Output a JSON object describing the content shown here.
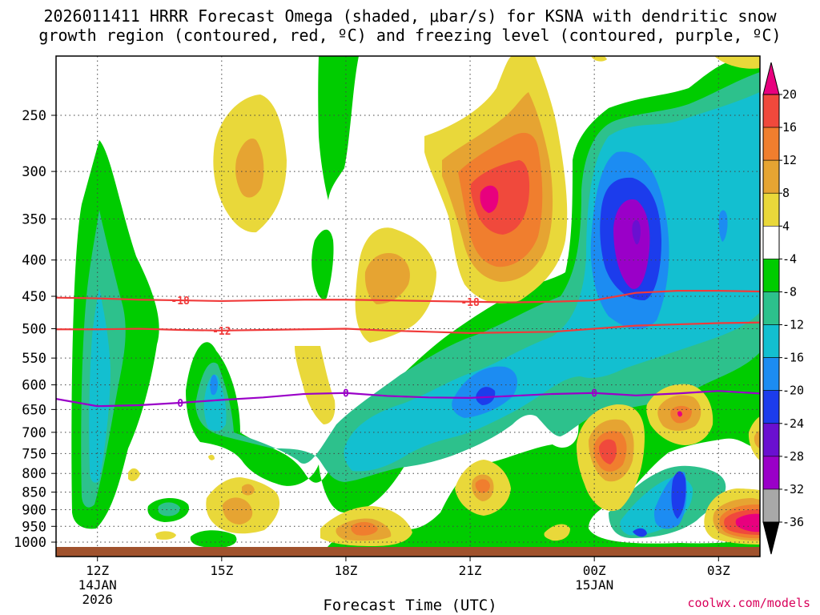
{
  "title_line1": "2026011411 HRRR Forecast Omega (shaded, μbar/s) for KSNA with dendritic snow",
  "title_line2": "growth region (contoured, red, ºC) and freezing level (contoured, purple, ºC)",
  "credit": "coolwx.com/models",
  "chart_data": {
    "type": "contour",
    "title": "2026011411 HRRR Forecast Omega (shaded, μbar/s) for KSNA with dendritic snow growth region (contoured, red, ºC) and freezing level (contoured, purple, ºC)",
    "xlabel": "Forecast Time (UTC)",
    "ylabel": "",
    "x_ticks": [
      {
        "hour": 12,
        "label": "12Z",
        "sub1": "14JAN",
        "sub2": "2026"
      },
      {
        "hour": 15,
        "label": "15Z"
      },
      {
        "hour": 18,
        "label": "18Z"
      },
      {
        "hour": 21,
        "label": "21Z"
      },
      {
        "hour": 24,
        "label": "00Z",
        "sub1": "15JAN"
      },
      {
        "hour": 27,
        "label": "03Z"
      }
    ],
    "xlim": [
      11,
      28
    ],
    "y_ticks": [
      250,
      300,
      350,
      400,
      450,
      500,
      550,
      600,
      650,
      700,
      750,
      800,
      850,
      900,
      950,
      1000
    ],
    "ylim_hpa": [
      1000,
      200
    ],
    "colorbar": {
      "labels": [
        "20",
        "16",
        "12",
        "8",
        "4",
        "-4",
        "-8",
        "-12",
        "-16",
        "-20",
        "-24",
        "-28",
        "-32",
        "-36"
      ],
      "bins": [
        {
          "range": "> 20",
          "color": "#e8007e"
        },
        {
          "range": "16 to 20",
          "color": "#f0493c"
        },
        {
          "range": "12 to 16",
          "color": "#f07e2e"
        },
        {
          "range": "8 to 12",
          "color": "#e6a432"
        },
        {
          "range": "4 to 8",
          "color": "#e9d83a"
        },
        {
          "range": "-4 to 4",
          "color": "#ffffff"
        },
        {
          "range": "-8 to -4",
          "color": "#00cc00"
        },
        {
          "range": "-12 to -8",
          "color": "#2dc18c"
        },
        {
          "range": "-16 to -12",
          "color": "#13bfd0"
        },
        {
          "range": "-20 to -16",
          "color": "#1c8cf2"
        },
        {
          "range": "-24 to -20",
          "color": "#1c3cec"
        },
        {
          "range": "-28 to -24",
          "color": "#6a10d0"
        },
        {
          "range": "-32 to -28",
          "color": "#9a00c8"
        },
        {
          "range": "-36 to -32",
          "color": "#a8a8a8"
        },
        {
          "range": "< -36",
          "color": "#000000"
        }
      ]
    },
    "contours": [
      {
        "name": "-18 ºC",
        "color": "#f03a3a",
        "labels": [
          "-18",
          "-18"
        ],
        "points": [
          [
            11,
            452
          ],
          [
            12,
            453
          ],
          [
            13,
            455
          ],
          [
            14,
            456
          ],
          [
            15,
            457
          ],
          [
            16,
            456
          ],
          [
            17,
            455
          ],
          [
            18,
            455
          ],
          [
            19,
            456
          ],
          [
            20,
            457
          ],
          [
            21,
            458
          ],
          [
            22,
            459
          ],
          [
            23,
            458
          ],
          [
            24,
            456
          ],
          [
            25,
            445
          ],
          [
            26,
            442
          ],
          [
            27,
            442
          ],
          [
            28,
            443
          ]
        ]
      },
      {
        "name": "-12 ºC",
        "color": "#f03a3a",
        "labels": [
          "-12"
        ],
        "points": [
          [
            11,
            501
          ],
          [
            12,
            501
          ],
          [
            13,
            500
          ],
          [
            14,
            502
          ],
          [
            15,
            503
          ],
          [
            16,
            502
          ],
          [
            17,
            501
          ],
          [
            18,
            500
          ],
          [
            19,
            503
          ],
          [
            20,
            505
          ],
          [
            21,
            507
          ],
          [
            22,
            506
          ],
          [
            23,
            505
          ],
          [
            24,
            500
          ],
          [
            25,
            495
          ],
          [
            26,
            493
          ],
          [
            27,
            491
          ],
          [
            28,
            490
          ]
        ]
      },
      {
        "name": "0 ºC",
        "color": "#9a00c8",
        "labels": [
          "0",
          "0",
          "0"
        ],
        "points": [
          [
            11,
            628
          ],
          [
            12,
            643
          ],
          [
            13,
            641
          ],
          [
            14,
            636
          ],
          [
            15,
            630
          ],
          [
            16,
            625
          ],
          [
            17,
            618
          ],
          [
            18,
            616
          ],
          [
            19,
            622
          ],
          [
            20,
            625
          ],
          [
            21,
            626
          ],
          [
            22,
            622
          ],
          [
            23,
            618
          ],
          [
            24,
            616
          ],
          [
            25,
            621
          ],
          [
            26,
            617
          ],
          [
            27,
            612
          ],
          [
            28,
            617
          ]
        ]
      }
    ]
  }
}
